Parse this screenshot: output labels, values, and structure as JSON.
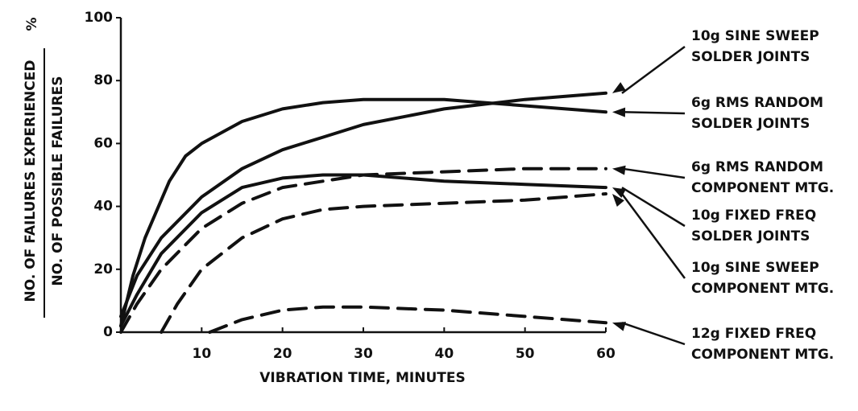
{
  "chart_data": {
    "type": "line",
    "xlabel": "VIBRATION TIME, MINUTES",
    "ylabel_top": "NO. OF FAILURES EXPERIENCED",
    "ylabel_bottom": "NO. OF POSSIBLE FAILURES",
    "ylabel_unit": "%",
    "xlim": [
      0,
      60
    ],
    "ylim": [
      0,
      100
    ],
    "xticks": [
      10,
      20,
      30,
      40,
      50,
      60
    ],
    "yticks": [
      0,
      20,
      40,
      60,
      80,
      100
    ],
    "series": [
      {
        "name": [
          "10g SINE SWEEP",
          "SOLDER JOINTS"
        ],
        "color": "#111111",
        "dashed": false,
        "x": [
          0,
          2,
          5,
          10,
          15,
          20,
          25,
          30,
          40,
          50,
          60
        ],
        "values": [
          5,
          18,
          30,
          43,
          52,
          58,
          62,
          66,
          71,
          74,
          76
        ]
      },
      {
        "name": [
          "6g RMS RANDOM",
          "SOLDER JOINTS"
        ],
        "color": "#111111",
        "dashed": false,
        "x": [
          0,
          1.5,
          3,
          6,
          8,
          10,
          15,
          20,
          25,
          30,
          40,
          50,
          60
        ],
        "values": [
          2,
          18,
          30,
          48,
          56,
          60,
          67,
          71,
          73,
          74,
          74,
          72,
          70
        ]
      },
      {
        "name": [
          "6g RMS RANDOM",
          "COMPONENT MTG."
        ],
        "color": "#111111",
        "dashed": true,
        "x": [
          0,
          2,
          5,
          10,
          15,
          20,
          30,
          40,
          50,
          60
        ],
        "values": [
          0,
          9,
          20,
          33,
          41,
          46,
          50,
          51,
          52,
          52
        ]
      },
      {
        "name": [
          "10g FIXED FREQ",
          "SOLDER JOINTS"
        ],
        "color": "#111111",
        "dashed": false,
        "x": [
          0,
          2,
          5,
          10,
          15,
          20,
          25,
          30,
          40,
          50,
          60
        ],
        "values": [
          2,
          12,
          25,
          38,
          46,
          49,
          50,
          50,
          48,
          47,
          46
        ]
      },
      {
        "name": [
          "10g SINE SWEEP",
          "COMPONENT MTG."
        ],
        "color": "#111111",
        "dashed": true,
        "x": [
          5,
          7,
          10,
          15,
          20,
          25,
          30,
          40,
          50,
          60
        ],
        "values": [
          0,
          9,
          20,
          30,
          36,
          39,
          40,
          41,
          42,
          44
        ]
      },
      {
        "name": [
          "12g FIXED FREQ",
          "COMPONENT MTG."
        ],
        "color": "#111111",
        "dashed": true,
        "x": [
          11,
          15,
          20,
          25,
          30,
          40,
          50,
          60
        ],
        "values": [
          0,
          4,
          7,
          8,
          8,
          7,
          5,
          3
        ]
      }
    ]
  }
}
